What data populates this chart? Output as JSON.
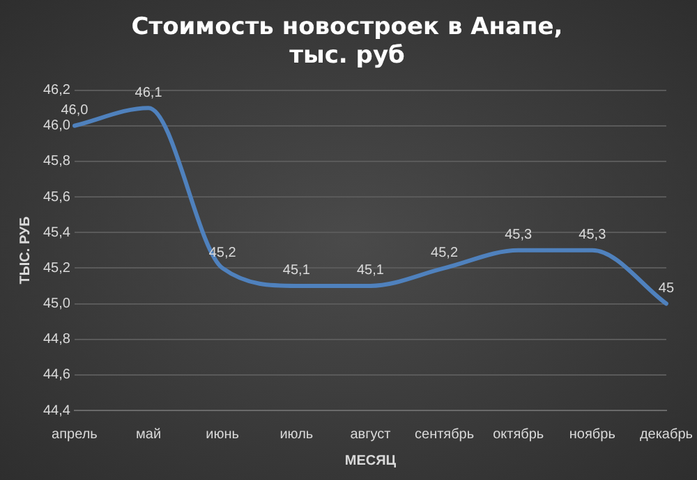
{
  "chart_data": {
    "type": "line",
    "title": "Стоимость новостроек в Анапе,\nтыс. руб",
    "xlabel": "МЕСЯЦ",
    "ylabel": "ТЫС. РУБ",
    "categories": [
      "апрель",
      "май",
      "июнь",
      "июль",
      "август",
      "сентябрь",
      "октябрь",
      "ноябрь",
      "декабрь"
    ],
    "series": [
      {
        "color": "#4f81bd",
        "values": [
          46.0,
          46.1,
          45.2,
          45.1,
          45.1,
          45.2,
          45.3,
          45.3,
          45.0
        ],
        "value_labels": [
          "46,0",
          "46,1",
          "45,2",
          "45,1",
          "45,1",
          "45,2",
          "45,3",
          "45,3",
          "45"
        ]
      }
    ],
    "ylim": [
      44.4,
      46.2
    ],
    "yticks": [
      {
        "value": 44.4,
        "label": "44,4"
      },
      {
        "value": 44.6,
        "label": "44,6"
      },
      {
        "value": 44.8,
        "label": "44,8"
      },
      {
        "value": 45.0,
        "label": "45,0"
      },
      {
        "value": 45.2,
        "label": "45,2"
      },
      {
        "value": 45.4,
        "label": "45,4"
      },
      {
        "value": 45.6,
        "label": "45,6"
      },
      {
        "value": 45.8,
        "label": "45,8"
      },
      {
        "value": 46.0,
        "label": "46,0"
      },
      {
        "value": 46.2,
        "label": "46,2"
      }
    ],
    "grid": "y",
    "legend": false,
    "marker": "none",
    "line_style": "solid"
  }
}
